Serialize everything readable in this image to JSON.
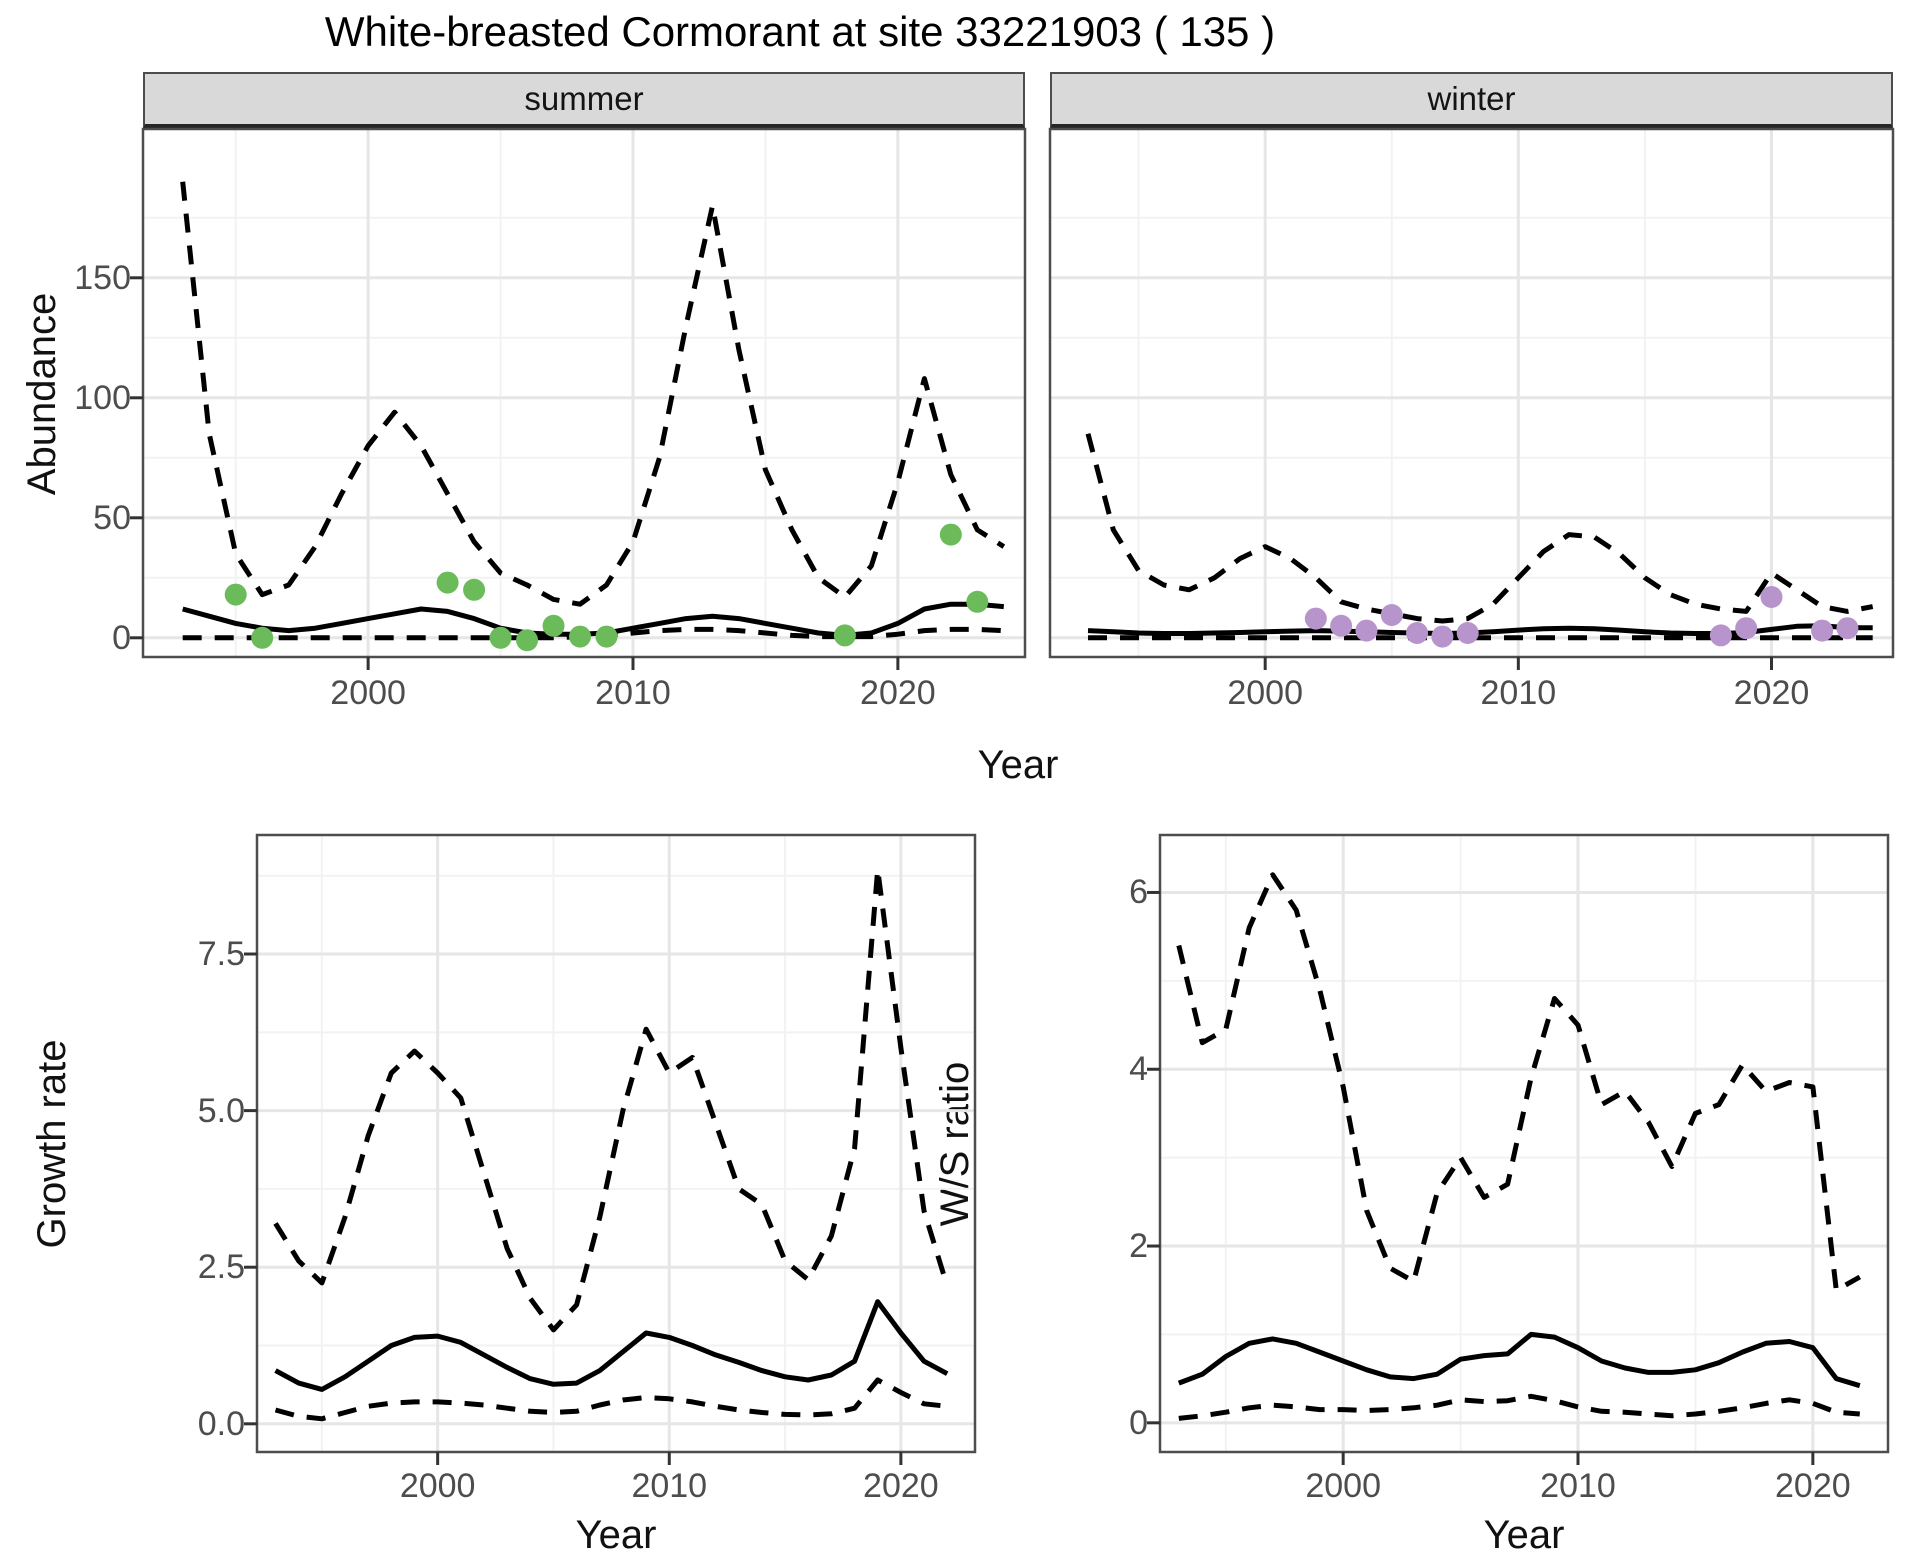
{
  "title": "White-breasted Cormorant at site 33221903 ( 135 )",
  "facets": [
    "summer",
    "winter"
  ],
  "axes": {
    "abundance": "Abundance",
    "year": "Year",
    "growth_rate": "Growth rate",
    "ws_ratio": "W/S ratio"
  },
  "colors": {
    "summer_points": "#6cbb5b",
    "winter_points": "#b794cc",
    "line": "#000000",
    "strip_bg": "#d9d9d9",
    "grid_major": "#e6e6e6",
    "grid_minor": "#f2f2f2",
    "panel_border": "#4d4d4d",
    "tick_mark": "#333333",
    "tick_text": "#4d4d4d"
  },
  "chart_data": [
    {
      "id": "abundance_summer",
      "type": "line",
      "facet": "summer",
      "xlabel": "Year",
      "ylabel": "Abundance",
      "xlim": [
        1991.5,
        2024.8
      ],
      "ylim": [
        -8,
        212
      ],
      "xticks": [
        2000,
        2010,
        2020
      ],
      "xtick_labels": [
        "2000",
        "2010",
        "2020"
      ],
      "yticks": [
        0,
        50,
        100,
        150
      ],
      "ytick_labels": [
        "0",
        "50",
        "100",
        "150"
      ],
      "grid": true,
      "legend": "none",
      "x": [
        1993,
        1994,
        1995,
        1996,
        1997,
        1998,
        1999,
        2000,
        2001,
        2002,
        2003,
        2004,
        2005,
        2006,
        2007,
        2008,
        2009,
        2010,
        2011,
        2012,
        2013,
        2014,
        2015,
        2016,
        2017,
        2018,
        2019,
        2020,
        2021,
        2022,
        2023,
        2024
      ],
      "series": [
        {
          "name": "upper_95ci",
          "style": "dashed",
          "values": [
            190,
            85,
            35,
            18,
            22,
            38,
            60,
            80,
            94,
            80,
            60,
            40,
            27,
            22,
            16,
            14,
            22,
            40,
            75,
            130,
            180,
            120,
            70,
            45,
            25,
            17,
            30,
            65,
            108,
            68,
            45,
            38
          ]
        },
        {
          "name": "median",
          "style": "solid",
          "values": [
            12,
            9,
            6,
            4,
            3,
            4,
            6,
            8,
            10,
            12,
            11,
            8,
            4,
            2,
            1.5,
            1.5,
            2,
            4,
            6,
            8,
            9,
            8,
            6,
            4,
            2,
            1,
            2,
            6,
            12,
            14,
            14,
            13
          ]
        },
        {
          "name": "lower_95ci",
          "style": "dashed",
          "values": [
            0,
            0,
            0,
            0,
            0,
            0,
            0,
            0,
            0,
            0,
            0,
            0,
            0,
            0,
            0,
            0.5,
            1,
            2,
            3,
            3.5,
            3.5,
            3,
            2,
            1,
            0.5,
            0.5,
            0.5,
            1.5,
            3,
            3.5,
            3.5,
            3
          ]
        }
      ],
      "points": {
        "name": "observed_counts",
        "color_key": "summer_points",
        "x": [
          1995,
          1996,
          2003,
          2004,
          2005,
          2006,
          2007,
          2008,
          2009,
          2018,
          2022,
          2023
        ],
        "y": [
          18,
          0,
          23,
          20,
          0,
          -1,
          5,
          0.5,
          0.5,
          1,
          43,
          15
        ]
      }
    },
    {
      "id": "abundance_winter",
      "type": "line",
      "facet": "winter",
      "xlabel": "Year",
      "ylabel": "Abundance",
      "xlim": [
        1991.5,
        2024.8
      ],
      "ylim": [
        -8,
        212
      ],
      "xticks": [
        2000,
        2010,
        2020
      ],
      "xtick_labels": [
        "2000",
        "2010",
        "2020"
      ],
      "yticks": [
        0,
        50,
        100,
        150
      ],
      "ytick_labels": [
        "0",
        "50",
        "100",
        "150"
      ],
      "grid": true,
      "legend": "none",
      "x": [
        1993,
        1994,
        1995,
        1996,
        1997,
        1998,
        1999,
        2000,
        2001,
        2002,
        2003,
        2004,
        2005,
        2006,
        2007,
        2008,
        2009,
        2010,
        2011,
        2012,
        2013,
        2014,
        2015,
        2016,
        2017,
        2018,
        2019,
        2020,
        2021,
        2022,
        2023,
        2024
      ],
      "series": [
        {
          "name": "upper_95ci",
          "style": "dashed",
          "values": [
            85,
            45,
            28,
            22,
            20,
            25,
            33,
            38,
            33,
            25,
            15,
            12,
            10,
            8,
            7,
            8,
            14,
            25,
            36,
            43,
            42,
            35,
            25,
            18,
            14,
            12,
            11,
            27,
            20,
            13,
            11,
            13
          ]
        },
        {
          "name": "median",
          "style": "solid",
          "values": [
            3,
            2.5,
            2,
            1.8,
            1.8,
            2,
            2.2,
            2.5,
            2.8,
            3,
            2.8,
            2.5,
            2.2,
            2,
            1.8,
            2,
            2.5,
            3.2,
            3.8,
            4,
            3.8,
            3.2,
            2.5,
            2,
            1.8,
            1.8,
            2.2,
            3.5,
            4.8,
            5,
            4.2,
            4.2
          ]
        },
        {
          "name": "lower_95ci",
          "style": "dashed",
          "values": [
            0,
            0,
            0,
            0,
            0,
            0,
            0,
            0,
            0,
            0,
            0,
            0,
            0,
            0,
            0,
            0,
            0,
            0,
            0,
            0,
            0,
            0,
            0,
            0,
            0,
            0,
            0,
            0,
            0,
            0,
            0,
            0
          ]
        }
      ],
      "points": {
        "name": "observed_counts",
        "color_key": "winter_points",
        "x": [
          2002,
          2003,
          2004,
          2005,
          2006,
          2007,
          2008,
          2018,
          2019,
          2020,
          2022,
          2023
        ],
        "y": [
          8,
          5,
          3,
          9.5,
          2,
          0.5,
          2,
          1,
          4,
          17,
          3,
          4
        ]
      }
    },
    {
      "id": "growth_rate",
      "type": "line",
      "facet": null,
      "xlabel": "Year",
      "ylabel": "Growth rate",
      "xlim": [
        1992.2,
        2023.2
      ],
      "ylim": [
        -0.45,
        9.4
      ],
      "xticks": [
        2000,
        2010,
        2020
      ],
      "xtick_labels": [
        "2000",
        "2010",
        "2020"
      ],
      "yticks": [
        0,
        2.5,
        5,
        7.5
      ],
      "ytick_labels": [
        "0.0",
        "2.5",
        "5.0",
        "7.5"
      ],
      "grid": true,
      "legend": "none",
      "x": [
        1993,
        1994,
        1995,
        1996,
        1997,
        1998,
        1999,
        2000,
        2001,
        2002,
        2003,
        2004,
        2005,
        2006,
        2007,
        2008,
        2009,
        2010,
        2011,
        2012,
        2013,
        2014,
        2015,
        2016,
        2017,
        2018,
        2019,
        2020,
        2021,
        2022
      ],
      "series": [
        {
          "name": "upper_95ci",
          "style": "dashed",
          "values": [
            3.2,
            2.6,
            2.25,
            3.3,
            4.6,
            5.6,
            5.95,
            5.6,
            5.2,
            4.0,
            2.8,
            2.0,
            1.5,
            1.9,
            3.3,
            5.0,
            6.3,
            5.6,
            5.85,
            4.8,
            3.75,
            3.5,
            2.6,
            2.3,
            3.0,
            4.4,
            8.85,
            6.0,
            3.4,
            2.2
          ]
        },
        {
          "name": "median",
          "style": "solid",
          "values": [
            0.85,
            0.65,
            0.55,
            0.75,
            1.0,
            1.25,
            1.38,
            1.4,
            1.3,
            1.1,
            0.9,
            0.72,
            0.63,
            0.65,
            0.85,
            1.15,
            1.45,
            1.38,
            1.25,
            1.1,
            0.98,
            0.85,
            0.75,
            0.7,
            0.78,
            1.0,
            1.95,
            1.45,
            1.0,
            0.8
          ]
        },
        {
          "name": "lower_95ci",
          "style": "dashed",
          "values": [
            0.22,
            0.12,
            0.08,
            0.18,
            0.28,
            0.33,
            0.35,
            0.35,
            0.33,
            0.3,
            0.25,
            0.2,
            0.18,
            0.2,
            0.3,
            0.38,
            0.42,
            0.4,
            0.35,
            0.28,
            0.22,
            0.18,
            0.15,
            0.14,
            0.16,
            0.25,
            0.7,
            0.5,
            0.32,
            0.28
          ]
        }
      ],
      "points": null
    },
    {
      "id": "ws_ratio",
      "type": "line",
      "facet": null,
      "xlabel": "Year",
      "ylabel": "W/S ratio",
      "xlim": [
        1992.2,
        2023.2
      ],
      "ylim": [
        -0.33,
        6.65
      ],
      "xticks": [
        2000,
        2010,
        2020
      ],
      "xtick_labels": [
        "2000",
        "2010",
        "2020"
      ],
      "yticks": [
        0,
        2,
        4,
        6
      ],
      "ytick_labels": [
        "0",
        "2",
        "4",
        "6"
      ],
      "grid": true,
      "legend": "none",
      "x": [
        1993,
        1994,
        1995,
        1996,
        1997,
        1998,
        1999,
        2000,
        2001,
        2002,
        2003,
        2004,
        2005,
        2006,
        2007,
        2008,
        2009,
        2010,
        2011,
        2012,
        2013,
        2014,
        2015,
        2016,
        2017,
        2018,
        2019,
        2020,
        2021,
        2022
      ],
      "series": [
        {
          "name": "upper_95ci",
          "style": "dashed",
          "values": [
            5.4,
            4.3,
            4.45,
            5.6,
            6.2,
            5.8,
            4.9,
            3.8,
            2.4,
            1.75,
            1.6,
            2.6,
            3.0,
            2.55,
            2.7,
            3.9,
            4.8,
            4.5,
            3.6,
            3.75,
            3.4,
            2.9,
            3.5,
            3.6,
            4.05,
            3.75,
            3.85,
            3.8,
            1.5,
            1.65
          ]
        },
        {
          "name": "median",
          "style": "solid",
          "values": [
            0.45,
            0.55,
            0.75,
            0.9,
            0.95,
            0.9,
            0.8,
            0.7,
            0.6,
            0.52,
            0.5,
            0.55,
            0.72,
            0.76,
            0.78,
            1.0,
            0.97,
            0.85,
            0.7,
            0.62,
            0.57,
            0.57,
            0.6,
            0.68,
            0.8,
            0.9,
            0.92,
            0.85,
            0.5,
            0.42
          ]
        },
        {
          "name": "lower_95ci",
          "style": "dashed",
          "values": [
            0.05,
            0.08,
            0.12,
            0.17,
            0.2,
            0.18,
            0.15,
            0.15,
            0.14,
            0.15,
            0.17,
            0.2,
            0.26,
            0.24,
            0.25,
            0.3,
            0.25,
            0.18,
            0.13,
            0.12,
            0.1,
            0.08,
            0.1,
            0.13,
            0.17,
            0.22,
            0.26,
            0.22,
            0.12,
            0.1
          ]
        }
      ],
      "points": null
    }
  ]
}
